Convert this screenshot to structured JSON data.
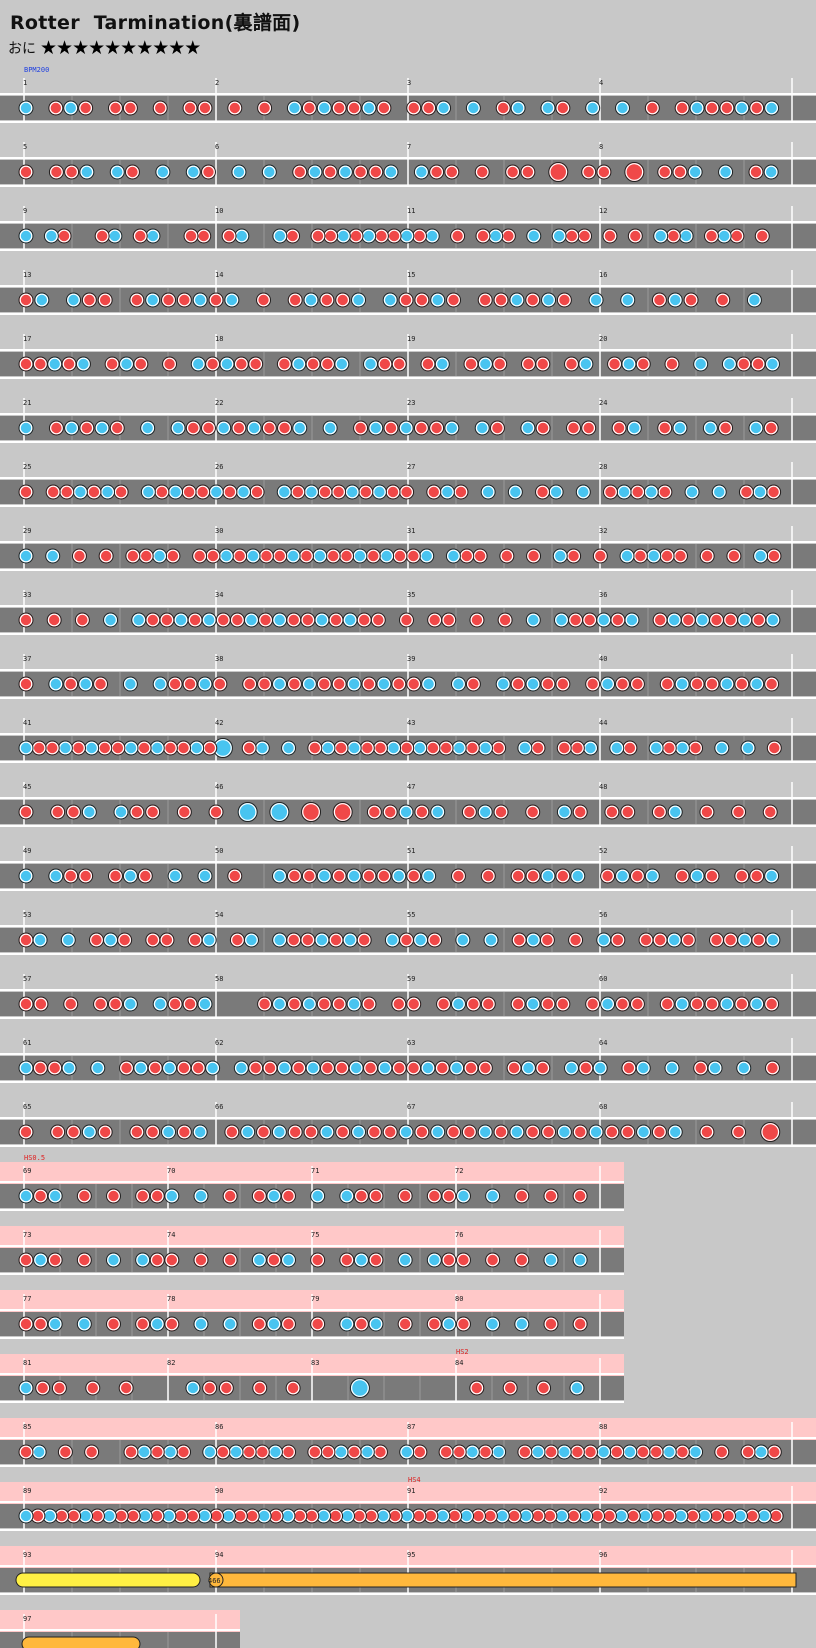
{
  "title": "Rotter  Tarmination(裏譜面)",
  "difficulty": {
    "label": "おに",
    "stars": "★★★★★★★★★★"
  },
  "colors": {
    "background": "#c8c8c8",
    "lane": "#7a7a7a",
    "don": "#f04848",
    "ka": "#48c4f0",
    "roll": "#ffb83c",
    "balloon": "#fff044",
    "scroll_band": "#ffc8c8",
    "label_red": "#e02020",
    "label_blue": "#2040e0"
  },
  "rows": [
    {
      "bars": [
        1,
        2,
        3,
        4
      ],
      "label": "BPM200",
      "label_color": "blue"
    },
    {
      "bars": [
        5,
        6,
        7,
        8
      ]
    },
    {
      "bars": [
        9,
        10,
        11,
        12
      ]
    },
    {
      "bars": [
        13,
        14,
        15,
        16
      ]
    },
    {
      "bars": [
        17,
        18,
        19,
        20
      ]
    },
    {
      "bars": [
        21,
        22,
        23,
        24
      ]
    },
    {
      "bars": [
        25,
        26,
        27,
        28
      ]
    },
    {
      "bars": [
        29,
        30,
        31,
        32
      ]
    },
    {
      "bars": [
        33,
        34,
        35,
        36
      ]
    },
    {
      "bars": [
        37,
        38,
        39,
        40
      ]
    },
    {
      "bars": [
        41,
        42,
        43,
        44
      ]
    },
    {
      "bars": [
        45,
        46,
        47,
        48
      ]
    },
    {
      "bars": [
        49,
        50,
        51,
        52
      ]
    },
    {
      "bars": [
        53,
        54,
        55,
        56
      ]
    },
    {
      "bars": [
        57,
        58,
        59,
        60
      ]
    },
    {
      "bars": [
        61,
        62,
        63,
        64
      ]
    },
    {
      "bars": [
        65,
        66,
        67,
        68
      ]
    },
    {
      "bars": [
        69,
        70,
        71,
        72
      ],
      "label": "HS0.5",
      "label_color": "red"
    },
    {
      "bars": [
        73,
        74,
        75,
        76
      ]
    },
    {
      "bars": [
        77,
        78,
        79,
        80
      ]
    },
    {
      "bars": [
        81,
        82,
        83,
        84
      ],
      "label2": "HS2"
    },
    {
      "bars": [
        85,
        86,
        87,
        88
      ]
    },
    {
      "bars": [
        89,
        90,
        91,
        92
      ],
      "label2": "HS4"
    },
    {
      "bars": [
        93,
        94,
        95,
        96
      ],
      "balloon_count": "466"
    },
    {
      "bars": [
        97
      ]
    }
  ],
  "notes": [
    "o.ooo.oo.o.oo.o.o.ooooooo.ooo.o.oo.oo.o.o.o.ooooooo",
    "o.ooo.oo.o.oo.o.o.ooooooo.ooo.o.oo.O.oo.O.ooo.o.oo",
    "o.oo..oo.oo..oo.oo..oo.oooooooooo.o.ooo.o.ooo.o.o.ooo.ooo.o.",
    "oo.ooo.ooooooo.o.ooooo.ooooo.oooooo.o.o.ooo.o.o.",
    "ooooo.ooo.o.ooooo.ooooo.ooo.oo.ooo.oo.oo.ooo.o.o.oooo",
    "o.ooooo.o.ooooooooo.o.ooooooo.oo.oo.oo.oo.oo.oo.oo",
    "o.oooooo.ooooooooo.oooooooooo.ooo.o.o.oo.o.ooooo.o.o.ooo",
    "o.o.o.o.oooo.oooooooooooooooooo.ooo.o.o.oo.o.ooooo.o.o.oo",
    "o.o.o.o.oooooooooooooooooo.o.oo.o.o.o.oooooo.ooooooooo",
    "o.oooo.o.ooooo.ooooooooooooo.oo.ooooo.oooo.oooooooo",
    "oooooooooooooooO.oo.o.ooooooooooooooo.oo.ooo.oo.oooo.o.o.o",
    "o.ooo.ooo.o.o.O.O.O.O.ooooo.ooo.o.oo.oo.oo.o.o.o",
    "o.ooo.ooo.o.o.o..ooooooooooo.o.o.ooooo.oooo.ooo.ooo",
    "oo.o.ooo.oo.oo.oo.ooooooo.oooo.o.o.ooo.o.oo.oooo.ooooo",
    "oo.o.ooo.oooo...oooooooo.oo.oooo.oooo.oooo.oooooooo",
    "oooo.o.ooooooo.oooooooooooooooooo.ooo.ooo.oo.o.oo.o.o",
    "o.oooo.ooooo.ooooooooooooooooooooooooooooo.o.o.O"
  ]
}
